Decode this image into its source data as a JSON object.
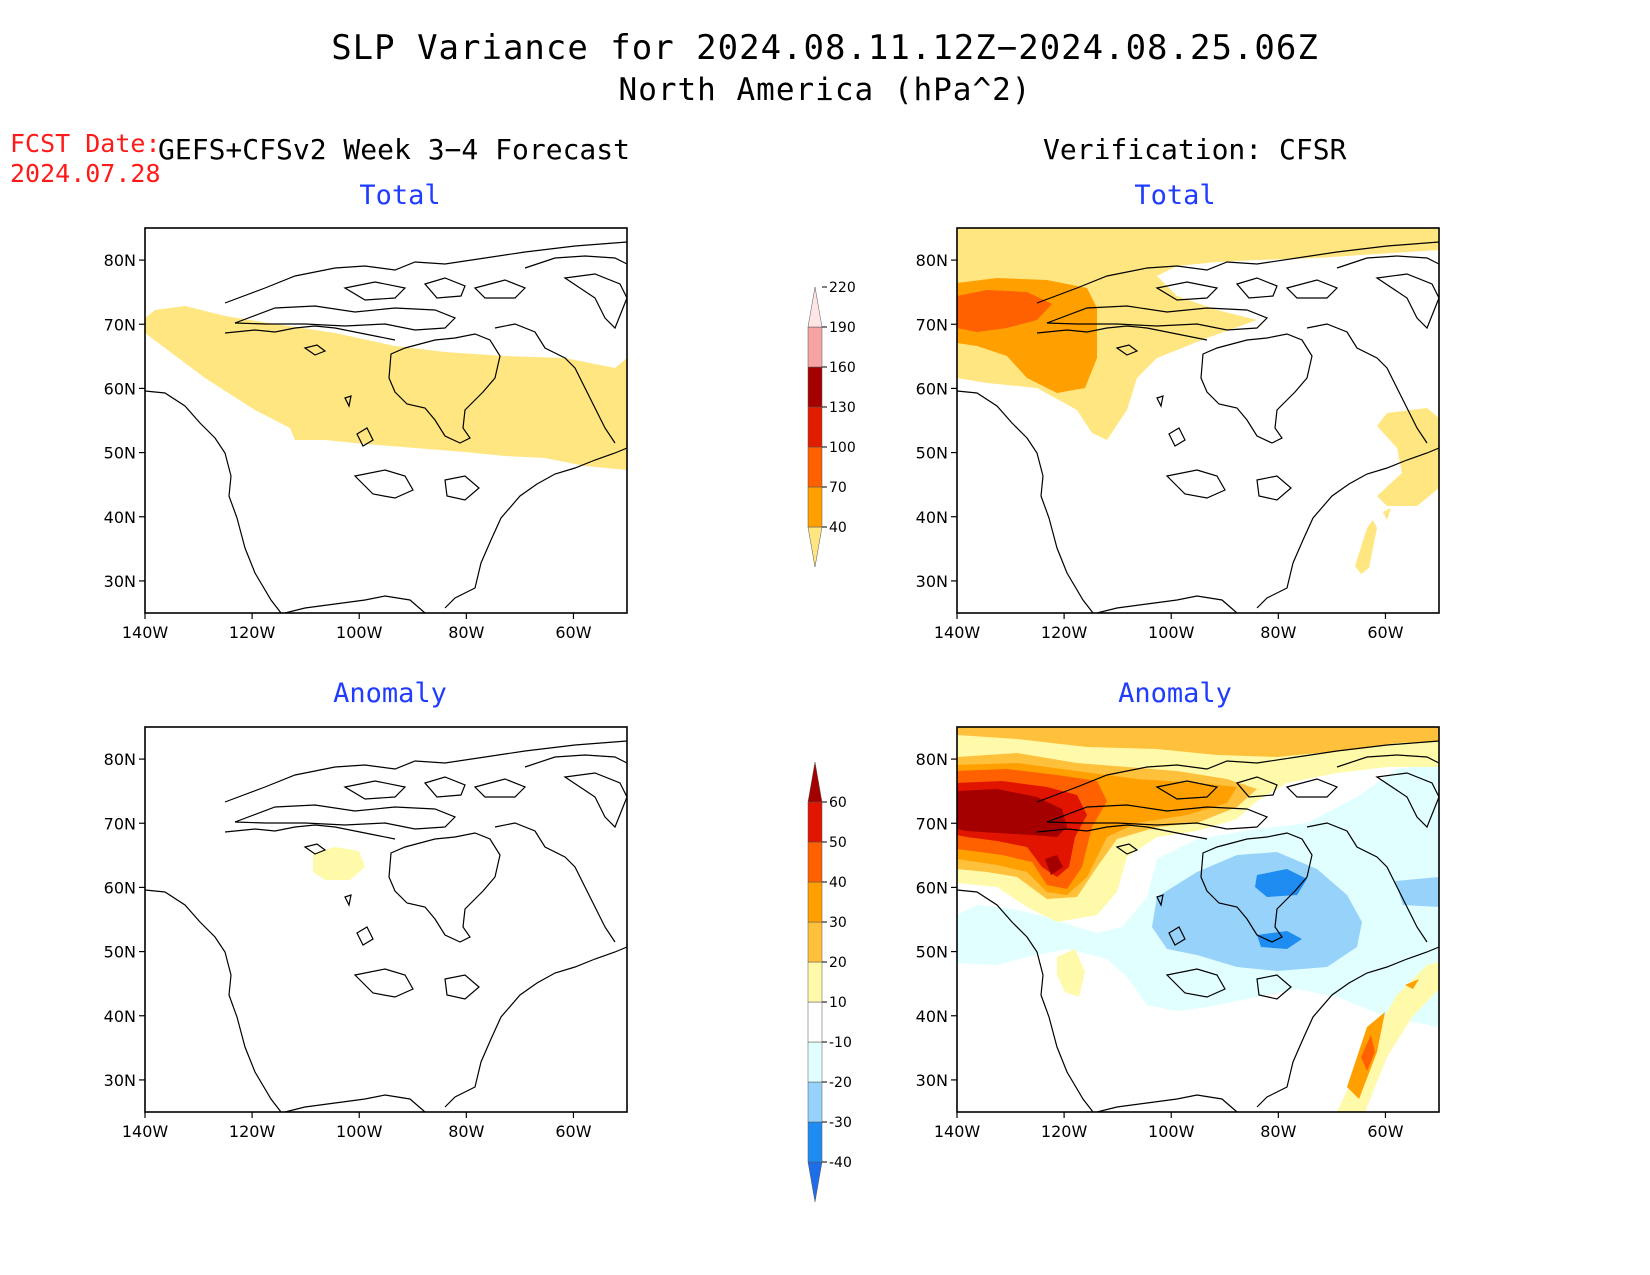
{
  "header": {
    "title_line1": "SLP Variance for 2024.08.11.12Z−2024.08.25.06Z",
    "title_line2": "North America (hPa^2)",
    "fcst_label": "FCST Date:",
    "fcst_date": "2024.07.28",
    "left_column": "GEFS+CFSv2 Week 3−4 Forecast",
    "right_column": "Verification: CFSR"
  },
  "panels": {
    "fc_total": {
      "title": "Total"
    },
    "obs_total": {
      "title": "Total"
    },
    "fc_anom": {
      "title": "Anomaly"
    },
    "obs_anom": {
      "title": "Anomaly"
    }
  },
  "axes": {
    "lat_labels": [
      "30N",
      "40N",
      "50N",
      "60N",
      "70N",
      "80N"
    ],
    "lat_values": [
      30,
      40,
      50,
      60,
      70,
      80
    ],
    "lon_labels": [
      "140W",
      "120W",
      "100W",
      "80W",
      "60W"
    ],
    "lon_values": [
      -140,
      -120,
      -100,
      -80,
      -60
    ],
    "lat_range": [
      25,
      85
    ],
    "lon_range": [
      -140,
      -50
    ]
  },
  "colorbars": {
    "total": {
      "levels": [
        "40",
        "70",
        "100",
        "130",
        "160",
        "190",
        "220"
      ],
      "colors": [
        "#ffe680",
        "#ffa000",
        "#ff6000",
        "#e11d00",
        "#a50000",
        "#f5a3a3",
        "#ffe6e6"
      ]
    },
    "anomaly": {
      "levels": [
        "-40",
        "-30",
        "-20",
        "-10",
        "10",
        "20",
        "30",
        "40",
        "50",
        "60"
      ],
      "colors": [
        "#1e6eeb",
        "#1e8cf0",
        "#96d2fa",
        "#e1ffff",
        "#ffffff",
        "#fffaaa",
        "#ffc03c",
        "#ffa000",
        "#ff6000",
        "#e11400",
        "#a50000"
      ]
    }
  },
  "colors": {
    "title_blue": "#1f3cff",
    "fcst_red": "#ff1a1a"
  }
}
